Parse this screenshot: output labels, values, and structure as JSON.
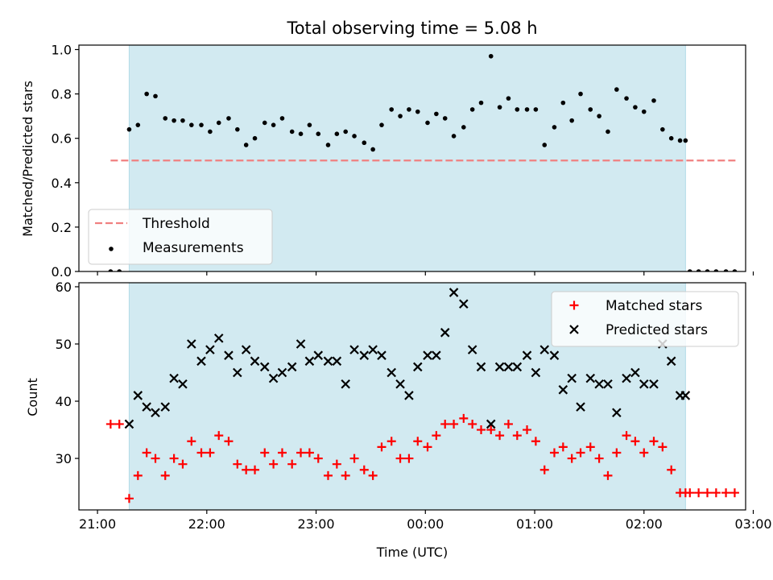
{
  "chart_data": [
    {
      "type": "scatter",
      "title": "Total observing time = 5.08 h",
      "ylabel": "Matched/Predicted stars",
      "xlabel": "",
      "xlim": [
        -0.17,
        5.93
      ],
      "ylim": [
        0,
        1.02
      ],
      "x_ticks": [
        {
          "value": 0,
          "label": ""
        },
        {
          "value": 1,
          "label": ""
        },
        {
          "value": 2,
          "label": ""
        },
        {
          "value": 3,
          "label": ""
        },
        {
          "value": 4,
          "label": ""
        },
        {
          "value": 5,
          "label": ""
        },
        {
          "value": 6,
          "label": ""
        }
      ],
      "y_ticks": [
        {
          "value": 0,
          "label": "0.0"
        },
        {
          "value": 0.2,
          "label": "0.2"
        },
        {
          "value": 0.4,
          "label": "0.4"
        },
        {
          "value": 0.6,
          "label": "0.6"
        },
        {
          "value": 0.8,
          "label": "0.8"
        },
        {
          "value": 1.0,
          "label": "1.0"
        }
      ],
      "shaded_interval": {
        "x": [
          0.29,
          5.38
        ],
        "color": "#add8e6"
      },
      "threshold": {
        "name": "Threshold",
        "y": 0.5,
        "x_range": [
          0.12,
          5.85
        ],
        "color": "#f08080"
      },
      "legend": {
        "position": "lower-left",
        "entries": [
          "Threshold",
          "Measurements"
        ]
      },
      "series": [
        {
          "name": "Measurements",
          "marker": "dot",
          "color": "#000000",
          "x": [
            0.12,
            0.2,
            0.29,
            0.37,
            0.45,
            0.53,
            0.62,
            0.7,
            0.78,
            0.86,
            0.95,
            1.03,
            1.11,
            1.2,
            1.28,
            1.36,
            1.44,
            1.53,
            1.61,
            1.69,
            1.78,
            1.86,
            1.94,
            2.02,
            2.11,
            2.19,
            2.27,
            2.35,
            2.44,
            2.52,
            2.6,
            2.69,
            2.77,
            2.85,
            2.93,
            3.02,
            3.1,
            3.18,
            3.26,
            3.35,
            3.43,
            3.51,
            3.6,
            3.68,
            3.76,
            3.84,
            3.93,
            4.01,
            4.09,
            4.18,
            4.26,
            4.34,
            4.42,
            4.51,
            4.59,
            4.67,
            4.75,
            4.84,
            4.92,
            5.0,
            5.09,
            5.17,
            5.25,
            5.33,
            5.38,
            5.42,
            5.5,
            5.58,
            5.66,
            5.75,
            5.83
          ],
          "y": [
            0.0,
            0.0,
            0.64,
            0.66,
            0.8,
            0.79,
            0.69,
            0.68,
            0.68,
            0.66,
            0.66,
            0.63,
            0.67,
            0.69,
            0.64,
            0.57,
            0.6,
            0.67,
            0.66,
            0.69,
            0.63,
            0.62,
            0.66,
            0.62,
            0.57,
            0.62,
            0.63,
            0.61,
            0.58,
            0.55,
            0.66,
            0.73,
            0.7,
            0.73,
            0.72,
            0.67,
            0.71,
            0.69,
            0.61,
            0.65,
            0.73,
            0.76,
            0.97,
            0.74,
            0.78,
            0.73,
            0.73,
            0.73,
            0.57,
            0.65,
            0.76,
            0.68,
            0.8,
            0.73,
            0.7,
            0.63,
            0.82,
            0.78,
            0.74,
            0.72,
            0.77,
            0.64,
            0.6,
            0.59,
            0.59,
            0.0,
            0.0,
            0.0,
            0.0,
            0.0,
            0.0
          ]
        }
      ]
    },
    {
      "type": "scatter",
      "title": "",
      "ylabel": "Count",
      "xlabel": "Time (UTC)",
      "xlim": [
        -0.17,
        5.93
      ],
      "ylim": [
        21,
        60.7
      ],
      "x_ticks": [
        {
          "value": 0,
          "label": "21:00"
        },
        {
          "value": 1,
          "label": "22:00"
        },
        {
          "value": 2,
          "label": "23:00"
        },
        {
          "value": 3,
          "label": "00:00"
        },
        {
          "value": 4,
          "label": "01:00"
        },
        {
          "value": 5,
          "label": "02:00"
        },
        {
          "value": 6,
          "label": "03:00"
        }
      ],
      "y_ticks": [
        {
          "value": 30,
          "label": "30"
        },
        {
          "value": 40,
          "label": "40"
        },
        {
          "value": 50,
          "label": "50"
        },
        {
          "value": 60,
          "label": "60"
        }
      ],
      "shaded_interval": {
        "x": [
          0.29,
          5.38
        ],
        "color": "#add8e6"
      },
      "legend": {
        "position": "upper-right",
        "entries": [
          "Matched stars",
          "Predicted stars"
        ]
      },
      "series": [
        {
          "name": "Matched stars",
          "marker": "plus",
          "color": "#ff0000",
          "x": [
            0.12,
            0.2,
            0.29,
            0.37,
            0.45,
            0.53,
            0.62,
            0.7,
            0.78,
            0.86,
            0.95,
            1.03,
            1.11,
            1.2,
            1.28,
            1.36,
            1.44,
            1.53,
            1.61,
            1.69,
            1.78,
            1.86,
            1.94,
            2.02,
            2.11,
            2.19,
            2.27,
            2.35,
            2.44,
            2.52,
            2.6,
            2.69,
            2.77,
            2.85,
            2.93,
            3.02,
            3.1,
            3.18,
            3.26,
            3.35,
            3.43,
            3.51,
            3.6,
            3.68,
            3.76,
            3.84,
            3.93,
            4.01,
            4.09,
            4.18,
            4.26,
            4.34,
            4.42,
            4.51,
            4.59,
            4.67,
            4.75,
            4.84,
            4.92,
            5.0,
            5.09,
            5.17,
            5.25,
            5.33,
            5.38,
            5.42,
            5.5,
            5.58,
            5.66,
            5.75,
            5.83
          ],
          "y": [
            36,
            36,
            23,
            27,
            31,
            30,
            27,
            30,
            29,
            33,
            31,
            31,
            34,
            33,
            29,
            28,
            28,
            31,
            29,
            31,
            29,
            31,
            31,
            30,
            27,
            29,
            27,
            30,
            28,
            27,
            32,
            33,
            30,
            30,
            33,
            32,
            34,
            36,
            36,
            37,
            36,
            35,
            35,
            34,
            36,
            34,
            35,
            33,
            28,
            31,
            32,
            30,
            31,
            32,
            30,
            27,
            31,
            34,
            33,
            31,
            33,
            32,
            28,
            24,
            24,
            24,
            24,
            24,
            24,
            24,
            24
          ]
        },
        {
          "name": "Predicted stars",
          "marker": "x",
          "color": "#000000",
          "x": [
            0.29,
            0.37,
            0.45,
            0.53,
            0.62,
            0.7,
            0.78,
            0.86,
            0.95,
            1.03,
            1.11,
            1.2,
            1.28,
            1.36,
            1.44,
            1.53,
            1.61,
            1.69,
            1.78,
            1.86,
            1.94,
            2.02,
            2.11,
            2.19,
            2.27,
            2.35,
            2.44,
            2.52,
            2.6,
            2.69,
            2.77,
            2.85,
            2.93,
            3.02,
            3.1,
            3.18,
            3.26,
            3.35,
            3.43,
            3.51,
            3.6,
            3.68,
            3.76,
            3.84,
            3.93,
            4.01,
            4.09,
            4.18,
            4.26,
            4.34,
            4.42,
            4.51,
            4.59,
            4.67,
            4.75,
            4.84,
            4.92,
            5.0,
            5.09,
            5.17,
            5.25,
            5.33,
            5.38
          ],
          "y": [
            36,
            41,
            39,
            38,
            39,
            44,
            43,
            50,
            47,
            49,
            51,
            48,
            45,
            49,
            47,
            46,
            44,
            45,
            46,
            50,
            47,
            48,
            47,
            47,
            43,
            49,
            48,
            49,
            48,
            45,
            43,
            41,
            46,
            48,
            48,
            52,
            59,
            57,
            49,
            46,
            36,
            46,
            46,
            46,
            48,
            45,
            49,
            48,
            42,
            44,
            39,
            44,
            43,
            43,
            38,
            44,
            45,
            43,
            43,
            50,
            47,
            41,
            41
          ]
        }
      ]
    }
  ]
}
